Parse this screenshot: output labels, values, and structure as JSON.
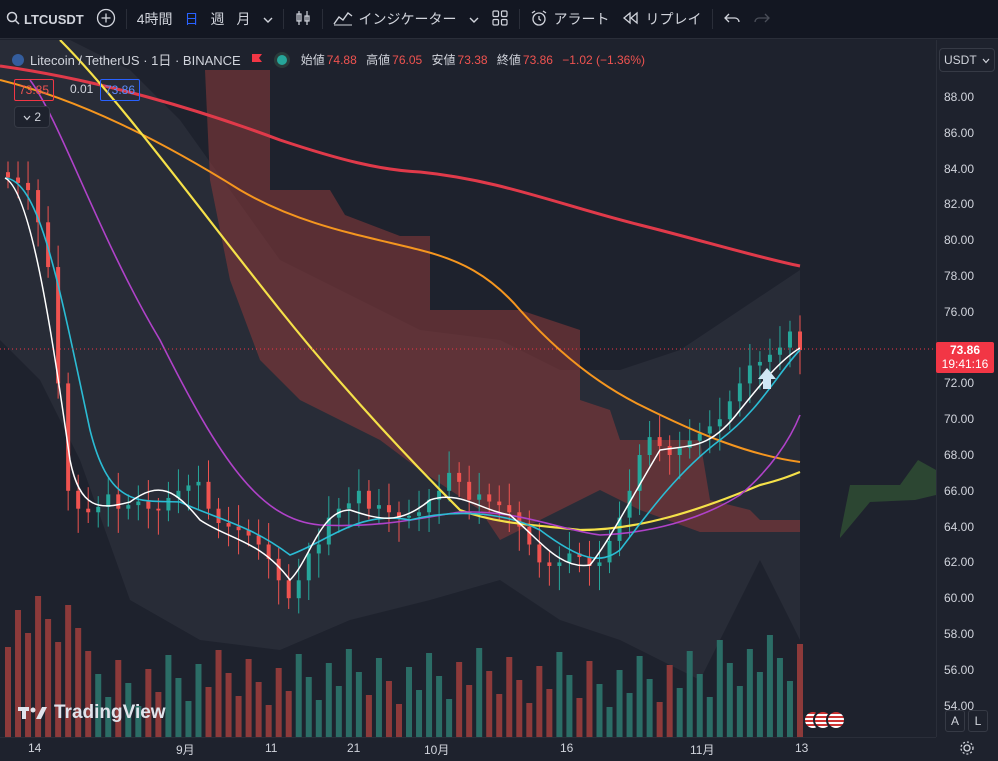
{
  "toolbar": {
    "symbol": "LTCUSDT",
    "timeframes": [
      "4時間",
      "日",
      "週",
      "月"
    ],
    "active_timeframe": "日",
    "indicators": "インジケーター",
    "alert": "アラート",
    "replay": "リプレイ"
  },
  "legend": {
    "title": "Litecoin / TetherUS · 1日 · BINANCE",
    "open_label": "始値",
    "open": "74.88",
    "high_label": "高値",
    "high": "76.05",
    "low_label": "安値",
    "low": "73.38",
    "close_label": "終値",
    "close": "73.86",
    "change": "−1.02 (−1.36%)",
    "bid": "73.85",
    "spread": "0.01",
    "ask": "73.86",
    "collapse_count": "2"
  },
  "price_axis": {
    "currency": "USDT",
    "ticks": [
      "88.00",
      "86.00",
      "84.00",
      "82.00",
      "80.00",
      "78.00",
      "76.00",
      "74.00",
      "72.00",
      "70.00",
      "68.00",
      "66.00",
      "64.00",
      "62.00",
      "60.00",
      "58.00",
      "56.00",
      "54.00"
    ],
    "current_price": "73.86",
    "countdown": "19:41:16"
  },
  "time_axis": {
    "ticks": [
      "14",
      "9月",
      "11",
      "21",
      "10月",
      "16",
      "11月",
      "13"
    ]
  },
  "buttons": {
    "auto": "A",
    "log": "L"
  },
  "watermark": "TradingView",
  "colors": {
    "up": "#26a69a",
    "down": "#ef5350",
    "accent": "#2962ff",
    "bg": "#1e222d"
  },
  "chart_data": {
    "type": "candlestick",
    "x_labels": [
      "14",
      "9月",
      "11",
      "21",
      "10月",
      "16",
      "11月",
      "13"
    ],
    "ylim": [
      53,
      90
    ],
    "closes": [
      83.5,
      83.2,
      82.8,
      81.0,
      78.5,
      72.0,
      66.0,
      65.0,
      64.8,
      65.1,
      65.8,
      65.0,
      65.2,
      65.4,
      65.0,
      64.9,
      65.6,
      66.0,
      66.3,
      66.5,
      65.0,
      64.2,
      64.0,
      63.8,
      63.5,
      63.0,
      62.2,
      61.0,
      60.0,
      61.0,
      62.5,
      63.0,
      64.5,
      65.0,
      65.3,
      66.0,
      65.0,
      65.2,
      64.8,
      64.5,
      64.6,
      64.8,
      65.5,
      66.0,
      67.0,
      66.5,
      65.5,
      65.8,
      65.4,
      65.2,
      64.8,
      64.0,
      63.0,
      62.0,
      61.8,
      62.0,
      62.5,
      62.3,
      61.8,
      62.0,
      63.2,
      64.5,
      66.0,
      68.0,
      69.0,
      68.5,
      68.0,
      68.4,
      68.8,
      69.2,
      69.6,
      70.0,
      71.0,
      72.0,
      73.0,
      73.2,
      73.6,
      74.0,
      74.9,
      73.86
    ]
  }
}
